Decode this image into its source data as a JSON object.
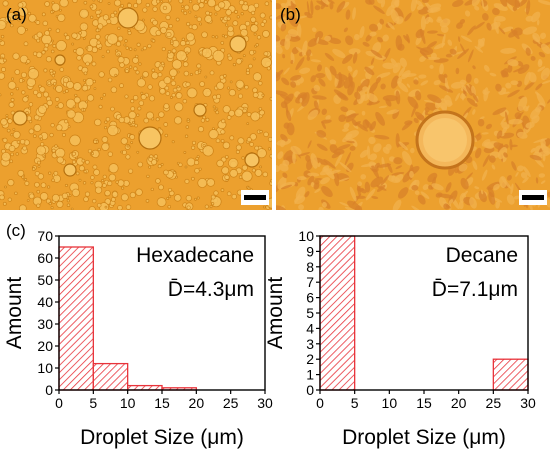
{
  "panels": {
    "a_label": "(a)",
    "b_label": "(b)",
    "c_label": "(c)",
    "scale_bar_icon": "scale-bar",
    "image_base_color": "#ECA02E"
  },
  "chart_data": [
    {
      "type": "bar",
      "title": "",
      "annotation_name": "Hexadecane",
      "annotation_mean": "D̄=4.3μm",
      "xlabel": "Droplet Size (μm)",
      "ylabel": "Amount",
      "x_bin_edges": [
        0,
        5,
        10,
        15,
        20,
        25,
        30
      ],
      "values": [
        65,
        12,
        2,
        1,
        0,
        0
      ],
      "xlim": [
        0,
        30
      ],
      "ylim": [
        0,
        70
      ],
      "xticks": [
        "0",
        "5",
        "10",
        "15",
        "20",
        "25",
        "30"
      ],
      "yticks": [
        "0",
        "10",
        "20",
        "30",
        "40",
        "50",
        "60",
        "70"
      ],
      "bar_color": "#E8333A",
      "bar_fill": "hatched"
    },
    {
      "type": "bar",
      "title": "",
      "annotation_name": "Decane",
      "annotation_mean": "D̄=7.1μm",
      "xlabel": "Droplet Size (μm)",
      "ylabel": "Amount",
      "x_bin_edges": [
        0,
        5,
        10,
        15,
        20,
        25,
        30
      ],
      "values": [
        10,
        0,
        0,
        0,
        0,
        2
      ],
      "xlim": [
        0,
        30
      ],
      "ylim": [
        0,
        10
      ],
      "xticks": [
        "0",
        "5",
        "10",
        "15",
        "20",
        "25",
        "30"
      ],
      "yticks": [
        "0",
        "1",
        "2",
        "3",
        "4",
        "5",
        "6",
        "7",
        "8",
        "9",
        "10"
      ],
      "bar_color": "#E8333A",
      "bar_fill": "hatched"
    }
  ]
}
